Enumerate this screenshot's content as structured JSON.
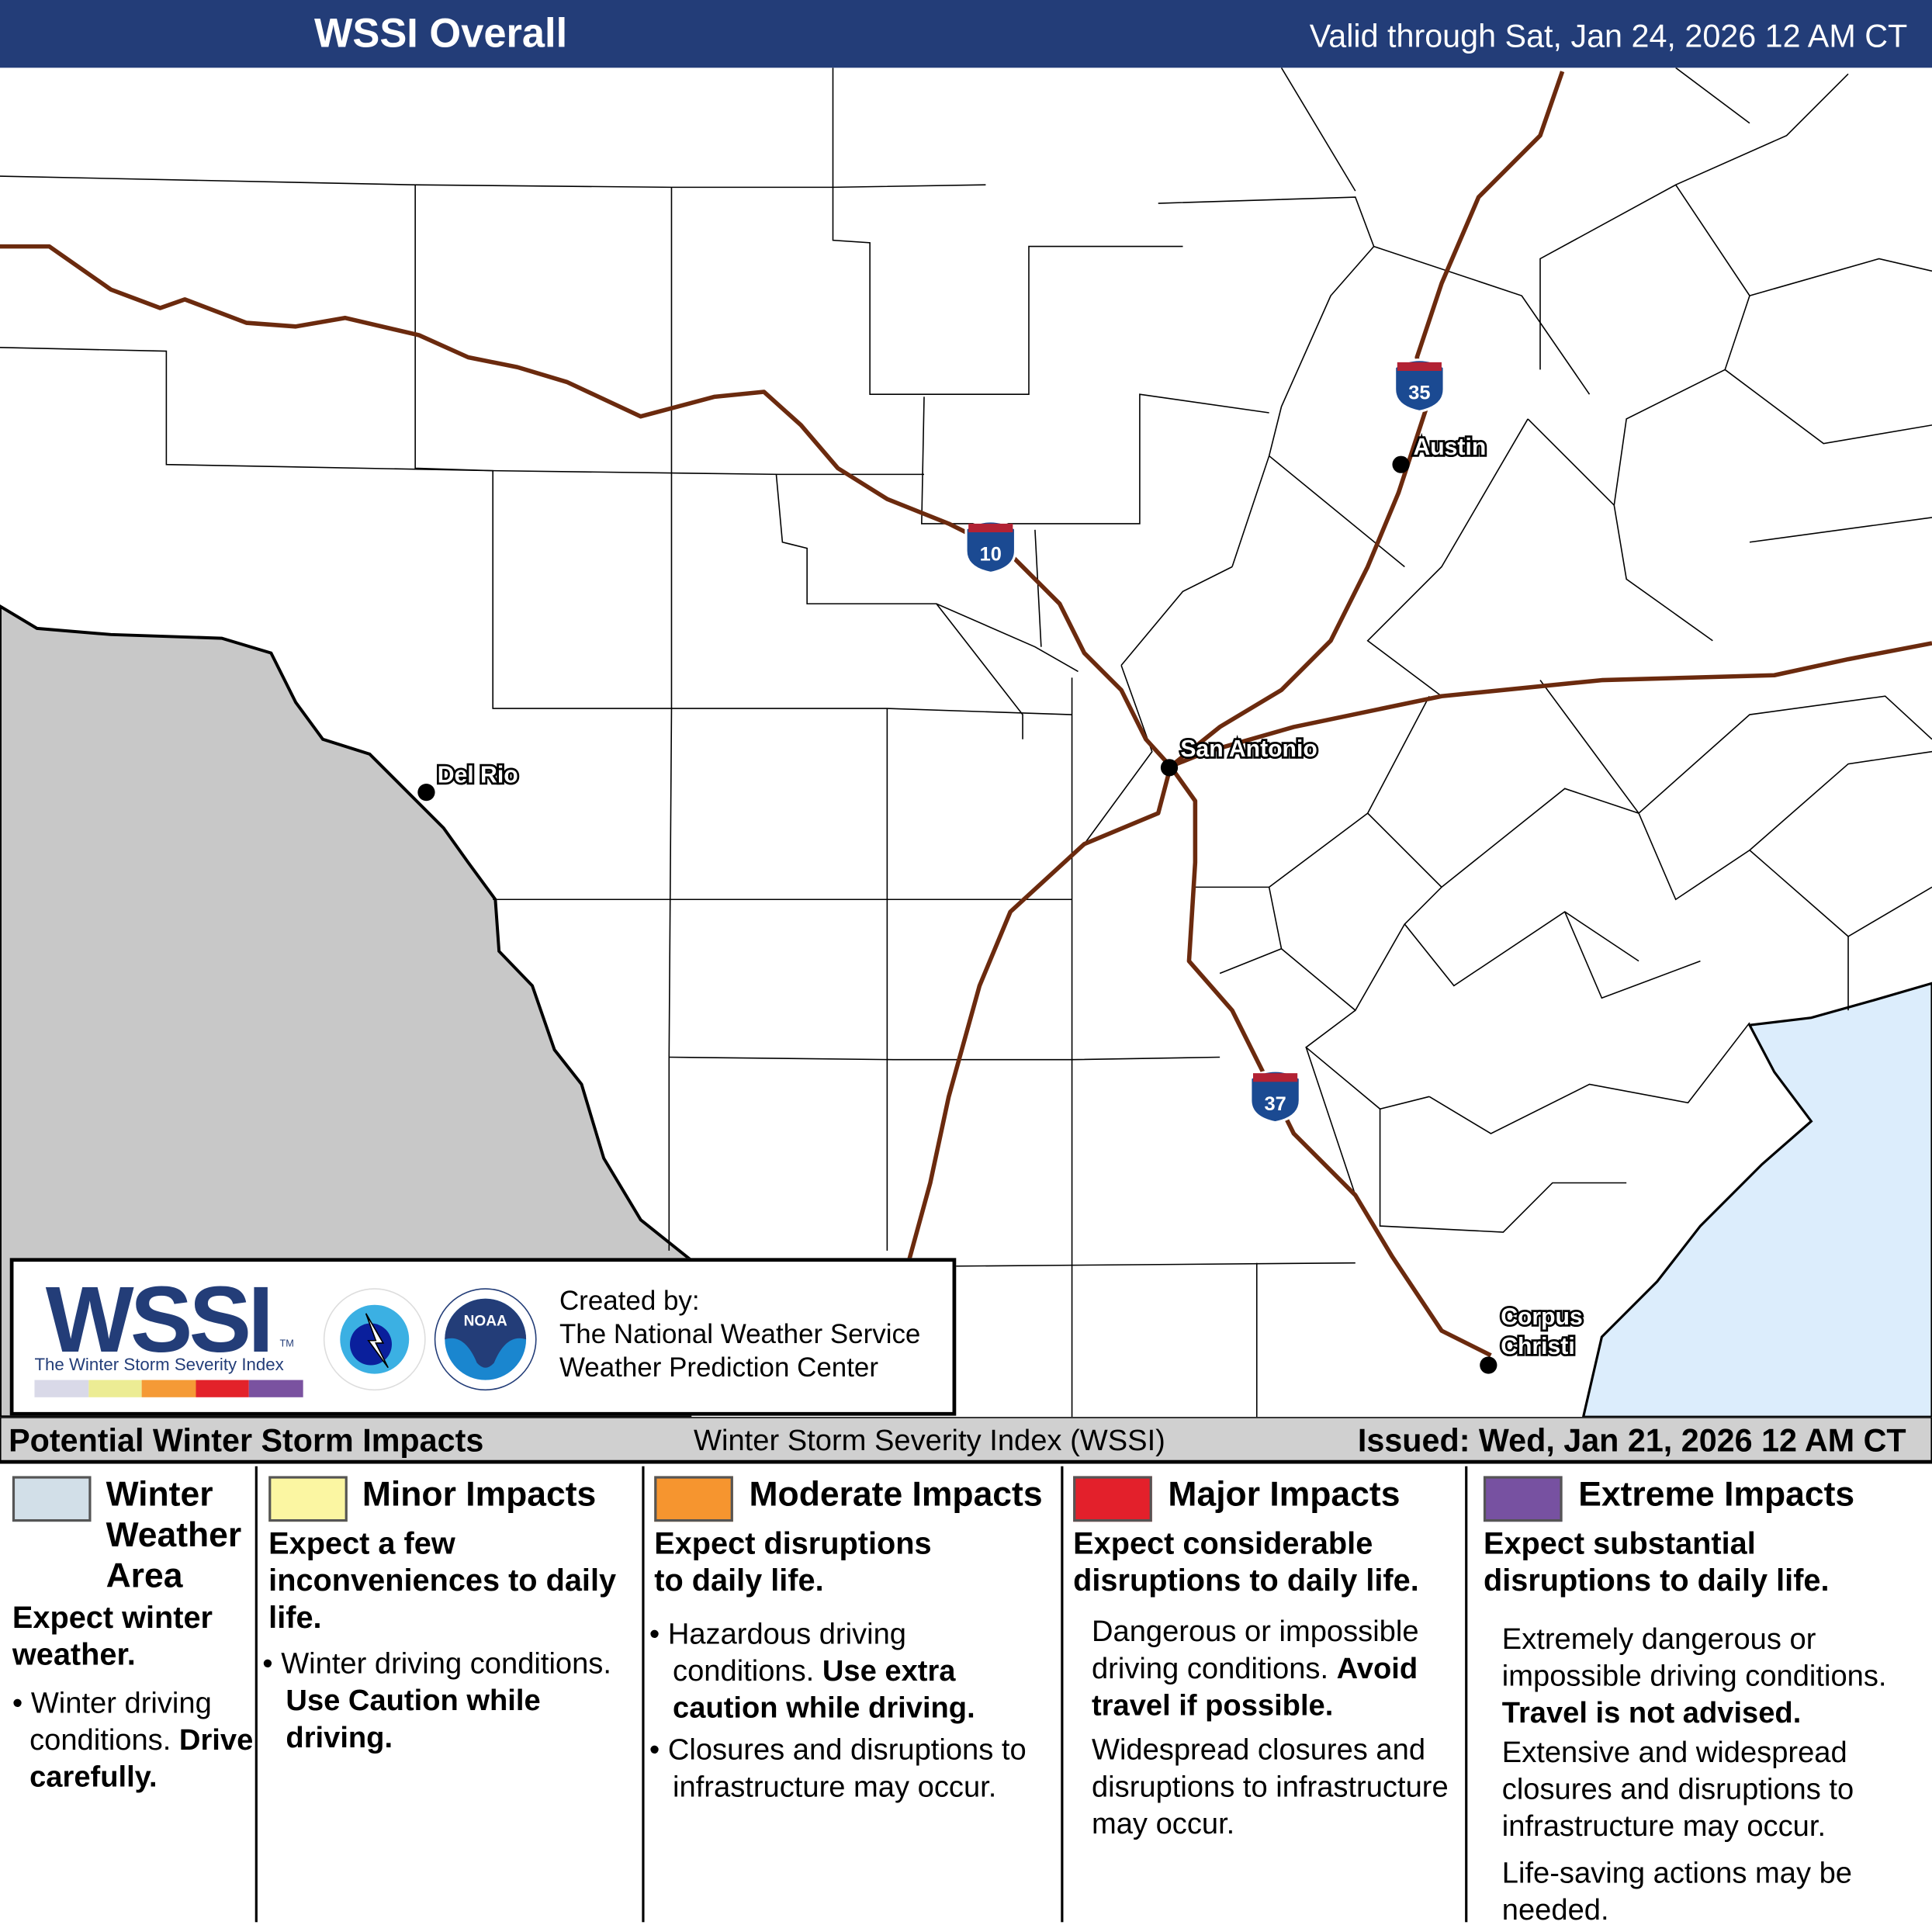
{
  "header": {
    "title": "WSSI Overall",
    "valid": "Valid through Sat, Jan 24, 2026 12 AM CT"
  },
  "map": {
    "cities": {
      "austin": "Austin",
      "san_antonio": "San Antonio",
      "del_rio": "Del Rio",
      "corpus_1": "Corpus",
      "corpus_2": "Christi"
    },
    "shields": {
      "i35": "35",
      "i10": "10",
      "i37": "37"
    },
    "colors": {
      "mexico": "#c8c8c8",
      "gulf": "#dcedfc",
      "interstate": "#6b2a0e",
      "header": "#233d78"
    }
  },
  "logo": {
    "wordmark": "WSSI",
    "tm": "TM",
    "subtitle": "The Winter Storm Severity Index",
    "nws_text": "NATIONAL WEATHER SERVICE",
    "noaa_text": "NOAA",
    "created_by": "Created by:",
    "org1": "The National Weather Service",
    "org2": "Weather Prediction Center",
    "bar_colors": [
      "#d9d9e8",
      "#ecec94",
      "#f59a36",
      "#e3222a",
      "#7a52a0"
    ]
  },
  "strip": {
    "left": "Potential Winter Storm Impacts",
    "center": "Winter Storm Severity Index (WSSI)",
    "right": "Issued: Wed, Jan 21, 2026 12 AM CT"
  },
  "legend": [
    {
      "title": "Winter Weather Area",
      "color": "#d2dfe8",
      "summary": "Expect winter weather.",
      "b1": "Winter driving conditions.",
      "b1_bold": "Drive carefully."
    },
    {
      "title": "Minor Impacts",
      "color": "#fbf6a2",
      "summary": "Expect a few inconveniences to daily life.",
      "b1": "Winter driving conditions.",
      "b1_bold": "Use Caution while driving."
    },
    {
      "title": "Moderate Impacts",
      "color": "#f6952f",
      "summary": "Expect disruptions to daily life.",
      "b1": "Hazardous driving conditions.",
      "b1_bold": "Use extra caution while driving.",
      "b2": "Closures and disruptions to infrastructure may occur."
    },
    {
      "title": "Major Impacts",
      "color": "#e3202b",
      "summary": "Expect considerable disruptions to daily life.",
      "p1": "Dangerous or impossible driving conditions.",
      "p1_bold": "Avoid travel if possible.",
      "p2": "Widespread closures and disruptions to infrastructure may occur."
    },
    {
      "title": "Extreme Impacts",
      "color": "#7751a1",
      "summary": "Expect substantial disruptions to daily life.",
      "p1": "Extremely dangerous or impossible driving conditions.",
      "p1_bold": "Travel is not advised.",
      "p2": "Extensive and widespread closures and disruptions to infrastructure may occur.",
      "p3": "Life-saving actions may be needed."
    }
  ]
}
